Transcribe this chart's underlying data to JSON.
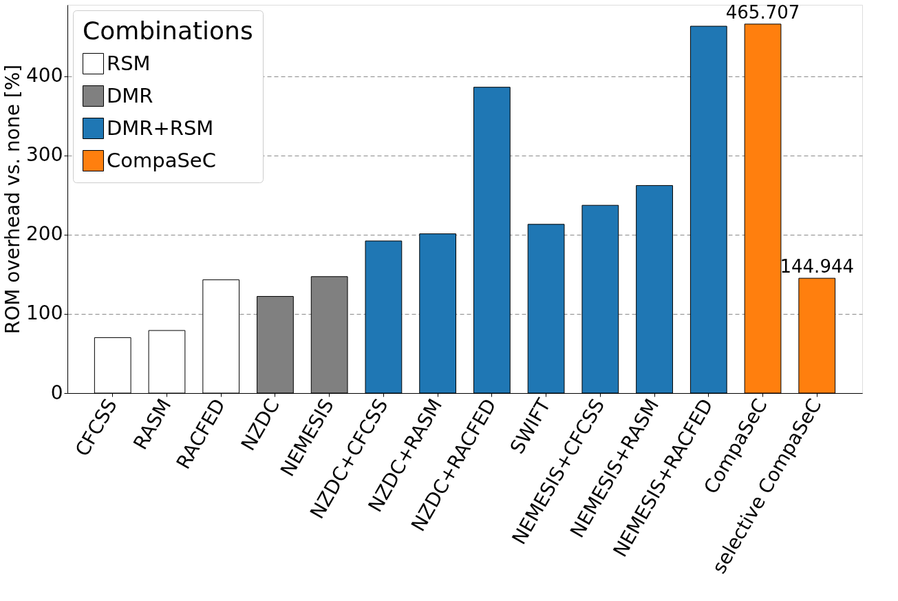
{
  "chart_data": {
    "type": "bar",
    "ylabel": "ROM overhead vs. none [%]",
    "legend_title": "Combinations",
    "categories": [
      "CFCSS",
      "RASM",
      "RACFED",
      "NZDC",
      "NEMESIS",
      "NZDC+CFCSS",
      "NZDC+RASM",
      "NZDC+RACFED",
      "SWIFT",
      "NEMESIS+CFCSS",
      "NEMESIS+RASM",
      "NEMESIS+RACFED",
      "CompaSeC",
      "selective CompaSeC"
    ],
    "series": [
      {
        "name": "RSM",
        "color": "#ffffff",
        "values": [
          70,
          79,
          143,
          null,
          null,
          null,
          null,
          null,
          null,
          null,
          null,
          null,
          null,
          null
        ]
      },
      {
        "name": "DMR",
        "color": "#808080",
        "values": [
          null,
          null,
          null,
          122,
          147,
          null,
          null,
          null,
          null,
          null,
          null,
          null,
          null,
          null
        ]
      },
      {
        "name": "DMR+RSM",
        "color": "#1f77b4",
        "values": [
          null,
          null,
          null,
          null,
          null,
          192,
          201,
          386,
          213,
          237,
          262,
          463,
          null,
          null
        ]
      },
      {
        "name": "CompaSeC",
        "color": "#ff7f0e",
        "values": [
          null,
          null,
          null,
          null,
          null,
          null,
          null,
          null,
          null,
          null,
          null,
          null,
          465.707,
          144.944
        ],
        "value_labels": [
          null,
          null,
          null,
          null,
          null,
          null,
          null,
          null,
          null,
          null,
          null,
          null,
          "465.707",
          "144.944"
        ]
      }
    ],
    "ylim": [
      0,
      490
    ],
    "yticks": [
      0,
      100,
      200,
      300,
      400
    ],
    "grid": "y",
    "legend": "top left"
  }
}
